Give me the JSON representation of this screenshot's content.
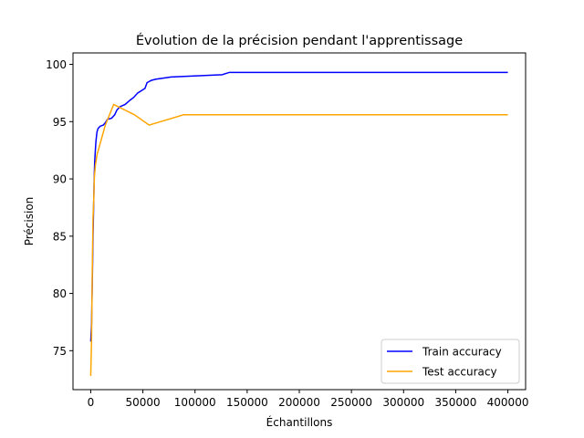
{
  "chart_data": {
    "type": "line",
    "title": "Évolution de la précision pendant l'apprentissage",
    "xlabel": "Échantillons",
    "ylabel": "Précision",
    "xlim": [
      -17000,
      417000
    ],
    "ylim": [
      71.6,
      101.0
    ],
    "xticks": [
      0,
      50000,
      100000,
      150000,
      200000,
      250000,
      300000,
      350000,
      400000
    ],
    "yticks": [
      75,
      80,
      85,
      90,
      95,
      100
    ],
    "grid": false,
    "legend_position": "lower-right",
    "series": [
      {
        "name": "Train accuracy",
        "color": "#0000ff",
        "points": [
          [
            0,
            75.8
          ],
          [
            800,
            77.3
          ],
          [
            1500,
            81.0
          ],
          [
            2200,
            85.0
          ],
          [
            2800,
            87.7
          ],
          [
            3300,
            90.0
          ],
          [
            3800,
            91.5
          ],
          [
            4300,
            92.3
          ],
          [
            5000,
            93.3
          ],
          [
            6000,
            94.1
          ],
          [
            7000,
            94.4
          ],
          [
            9000,
            94.6
          ],
          [
            12000,
            94.7
          ],
          [
            14000,
            94.9
          ],
          [
            16000,
            95.2
          ],
          [
            20000,
            95.3
          ],
          [
            23000,
            95.6
          ],
          [
            25000,
            96.0
          ],
          [
            28000,
            96.3
          ],
          [
            33000,
            96.5
          ],
          [
            38000,
            96.9
          ],
          [
            41000,
            97.1
          ],
          [
            45000,
            97.5
          ],
          [
            52000,
            97.9
          ],
          [
            54000,
            98.4
          ],
          [
            58000,
            98.6
          ],
          [
            62000,
            98.7
          ],
          [
            77000,
            98.9
          ],
          [
            126000,
            99.1
          ],
          [
            133000,
            99.3
          ],
          [
            400000,
            99.3
          ]
        ]
      },
      {
        "name": "Test accuracy",
        "color": "#ffa500",
        "points": [
          [
            0,
            72.8
          ],
          [
            800,
            76.0
          ],
          [
            1500,
            82.0
          ],
          [
            2200,
            86.5
          ],
          [
            2800,
            87.9
          ],
          [
            3500,
            90.2
          ],
          [
            4500,
            91.2
          ],
          [
            6000,
            92.1
          ],
          [
            14000,
            94.7
          ],
          [
            22000,
            96.5
          ],
          [
            42000,
            95.6
          ],
          [
            56000,
            94.7
          ],
          [
            89000,
            95.6
          ],
          [
            400000,
            95.6
          ]
        ]
      }
    ]
  }
}
